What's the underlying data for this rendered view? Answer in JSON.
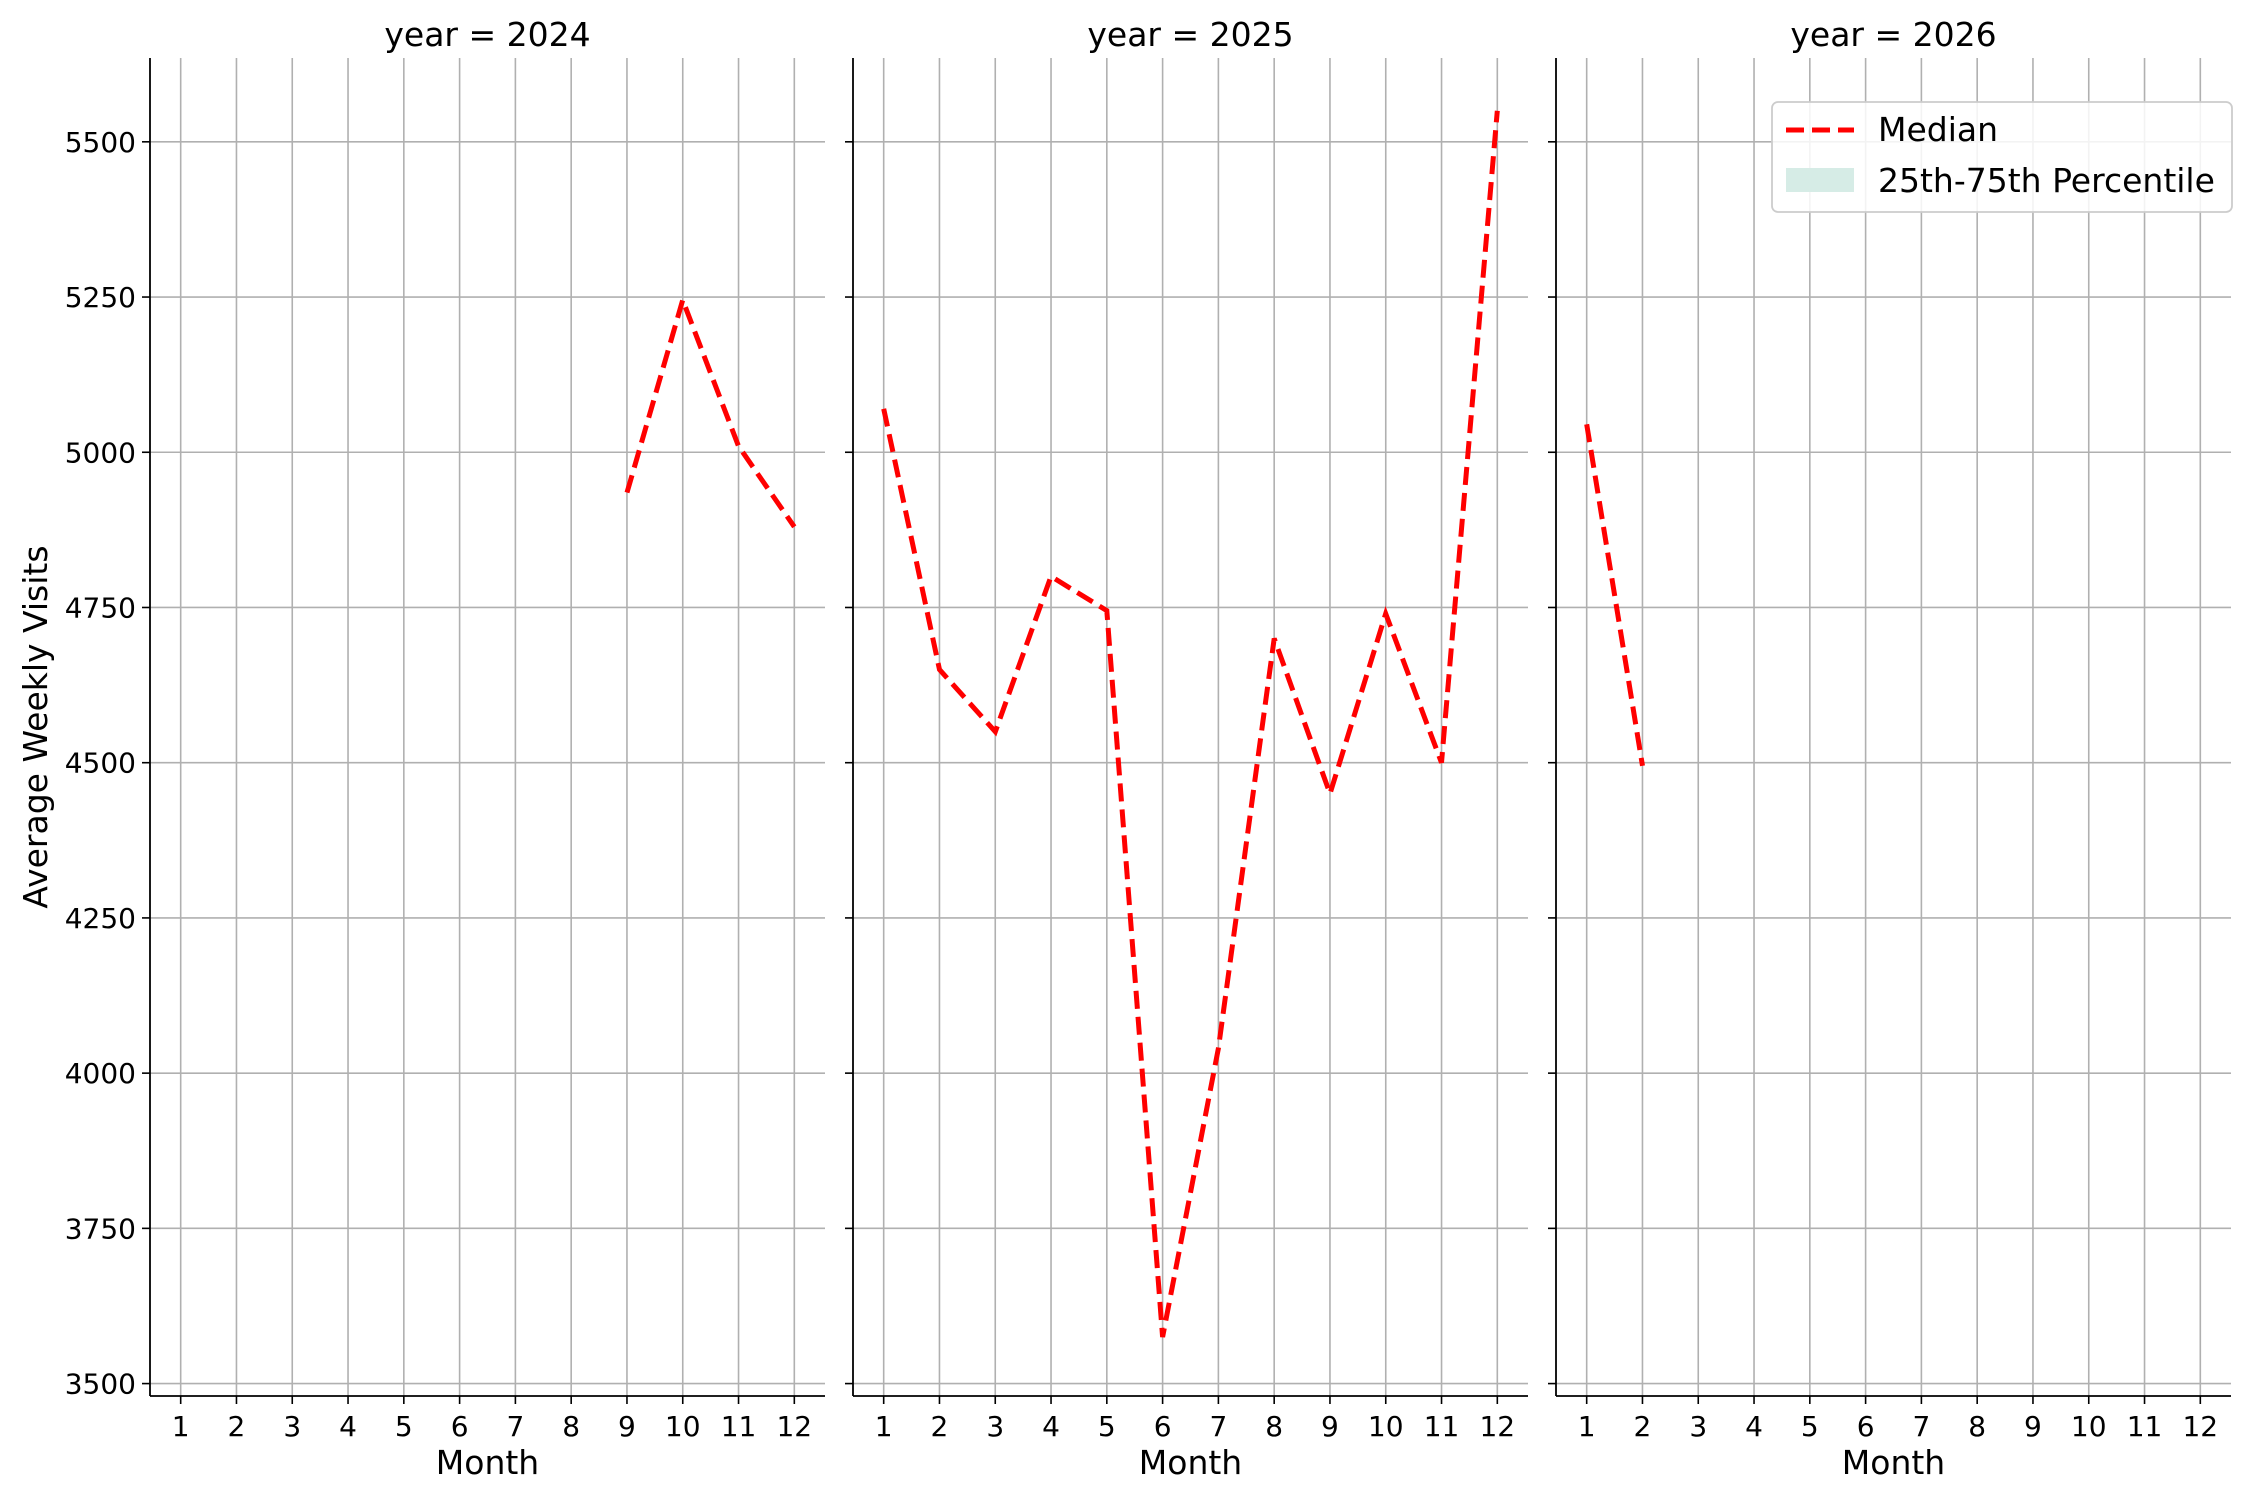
{
  "chart_data": {
    "type": "line",
    "ylabel": "Average Weekly Visits",
    "ylim": [
      3480,
      5635
    ],
    "yticks": [
      3500,
      3750,
      4000,
      4250,
      4500,
      4750,
      5000,
      5250,
      5500
    ],
    "xlim": [
      0.45,
      12.55
    ],
    "xticks": [
      1,
      2,
      3,
      4,
      5,
      6,
      7,
      8,
      9,
      10,
      11,
      12
    ],
    "grid": true,
    "colors": {
      "median": "#ff0000",
      "percentile_band": "#d6ece6"
    },
    "legend": {
      "placement": "top-right",
      "entries": [
        {
          "label": "Median",
          "style": "dashed-line"
        },
        {
          "label": "25th-75th Percentile",
          "style": "band"
        }
      ]
    },
    "panels": [
      {
        "title": "year = 2024",
        "xlabel": "Month",
        "series": [
          {
            "x": [
              9,
              10,
              11,
              12
            ],
            "y": [
              4935,
              5245,
              5010,
              4880
            ]
          }
        ]
      },
      {
        "title": "year = 2025",
        "xlabel": "Month",
        "series": [
          {
            "x": [
              1,
              2,
              3,
              4,
              5,
              6,
              7,
              8,
              9,
              10,
              11,
              12
            ],
            "y": [
              5070,
              4650,
              4550,
              4800,
              4745,
              3575,
              4040,
              4700,
              4450,
              4740,
              4500,
              5550
            ]
          }
        ]
      },
      {
        "title": "year = 2026",
        "xlabel": "Month",
        "series": [
          {
            "x": [
              1,
              2
            ],
            "y": [
              5045,
              4495
            ]
          }
        ]
      }
    ]
  }
}
